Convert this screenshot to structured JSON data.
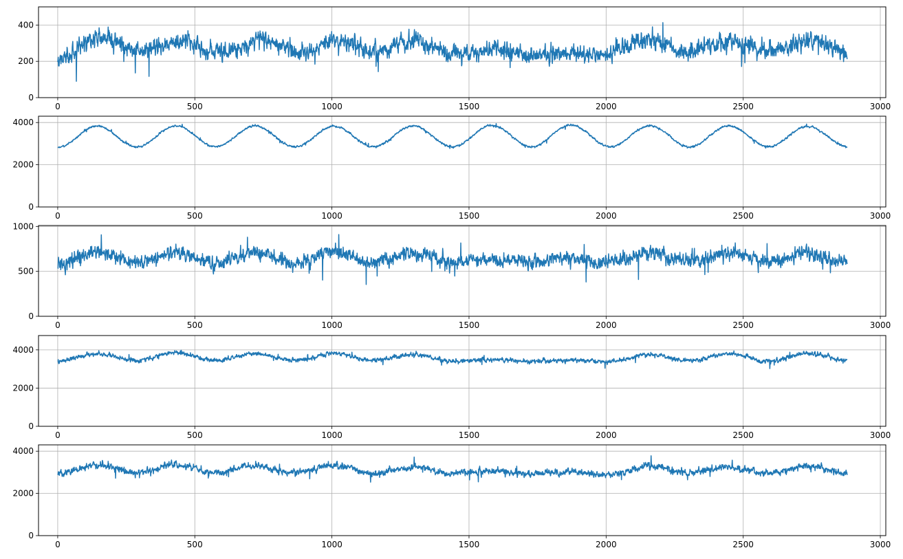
{
  "chart_data": [
    {
      "type": "line",
      "title": "",
      "xlabel": "",
      "ylabel": "",
      "xlim": [
        -70,
        3020
      ],
      "ylim": [
        0,
        500
      ],
      "xticks": [
        0,
        500,
        1000,
        1500,
        2000,
        2500,
        3000
      ],
      "xtick_labels": [
        "0",
        "500",
        "1000",
        "1500",
        "2000",
        "2500",
        "3000"
      ],
      "yticks": [
        0,
        200,
        400
      ],
      "ytick_labels": [
        "0",
        "200",
        "400"
      ],
      "grid": true,
      "color": "#1f77b4",
      "series": [
        {
          "n_points": 2880,
          "x_range": [
            0,
            2879
          ],
          "values_summary": {
            "baseline": 275,
            "min": 90,
            "max": 460
          },
          "envelope": [
            [
              0,
              210
            ],
            [
              150,
              330
            ],
            [
              300,
              255
            ],
            [
              450,
              310
            ],
            [
              600,
              245
            ],
            [
              750,
              320
            ],
            [
              900,
              245
            ],
            [
              1000,
              320
            ],
            [
              1150,
              255
            ],
            [
              1300,
              315
            ],
            [
              1450,
              240
            ],
            [
              1600,
              265
            ],
            [
              1750,
              240
            ],
            [
              1900,
              245
            ],
            [
              2000,
              240
            ],
            [
              2150,
              315
            ],
            [
              2300,
              255
            ],
            [
              2450,
              305
            ],
            [
              2600,
              255
            ],
            [
              2750,
              320
            ],
            [
              2879,
              255
            ]
          ],
          "noise_amplitude": 45
        }
      ]
    },
    {
      "type": "line",
      "title": "",
      "xlabel": "",
      "ylabel": "",
      "xlim": [
        -70,
        3020
      ],
      "ylim": [
        0,
        4300
      ],
      "xticks": [
        0,
        500,
        1000,
        1500,
        2000,
        2500,
        3000
      ],
      "xtick_labels": [
        "0",
        "500",
        "1000",
        "1500",
        "2000",
        "2500",
        "3000"
      ],
      "yticks": [
        0,
        2000,
        4000
      ],
      "ytick_labels": [
        "0",
        "2000",
        "4000"
      ],
      "grid": true,
      "color": "#1f77b4",
      "series": [
        {
          "n_points": 2880,
          "x_range": [
            0,
            2879
          ],
          "values_summary": {
            "baseline": 3350,
            "min": 2750,
            "max": 3950
          },
          "envelope": [
            [
              0,
              2830
            ],
            [
              144,
              3830
            ],
            [
              288,
              2850
            ],
            [
              432,
              3840
            ],
            [
              576,
              2850
            ],
            [
              720,
              3840
            ],
            [
              864,
              2850
            ],
            [
              1008,
              3820
            ],
            [
              1152,
              2850
            ],
            [
              1296,
              3840
            ],
            [
              1440,
              2850
            ],
            [
              1584,
              3860
            ],
            [
              1728,
              2850
            ],
            [
              1872,
              3880
            ],
            [
              2016,
              2850
            ],
            [
              2160,
              3850
            ],
            [
              2304,
              2850
            ],
            [
              2448,
              3850
            ],
            [
              2592,
              2860
            ],
            [
              2736,
              3820
            ],
            [
              2879,
              2860
            ]
          ],
          "noise_amplitude": 45
        }
      ]
    },
    {
      "type": "line",
      "title": "",
      "xlabel": "",
      "ylabel": "",
      "xlim": [
        -70,
        3020
      ],
      "ylim": [
        0,
        1010
      ],
      "xticks": [
        0,
        500,
        1000,
        1500,
        2000,
        2500,
        3000
      ],
      "xtick_labels": [
        "0",
        "500",
        "1000",
        "1500",
        "2000",
        "2500",
        "3000"
      ],
      "yticks": [
        0,
        500,
        1000
      ],
      "ytick_labels": [
        "0",
        "500",
        "1000"
      ],
      "grid": true,
      "color": "#1f77b4",
      "series": [
        {
          "n_points": 2880,
          "x_range": [
            0,
            2879
          ],
          "values_summary": {
            "baseline": 640,
            "min": 350,
            "max": 910
          },
          "envelope": [
            [
              0,
              580
            ],
            [
              144,
              710
            ],
            [
              288,
              590
            ],
            [
              432,
              700
            ],
            [
              576,
              590
            ],
            [
              720,
              710
            ],
            [
              864,
              590
            ],
            [
              1008,
              720
            ],
            [
              1152,
              600
            ],
            [
              1296,
              710
            ],
            [
              1440,
              600
            ],
            [
              1584,
              630
            ],
            [
              1728,
              610
            ],
            [
              1872,
              640
            ],
            [
              2016,
              600
            ],
            [
              2160,
              710
            ],
            [
              2304,
              610
            ],
            [
              2448,
              700
            ],
            [
              2592,
              600
            ],
            [
              2736,
              700
            ],
            [
              2879,
              590
            ]
          ],
          "noise_amplitude": 75
        }
      ]
    },
    {
      "type": "line",
      "title": "",
      "xlabel": "",
      "ylabel": "",
      "xlim": [
        -70,
        3020
      ],
      "ylim": [
        0,
        4750
      ],
      "xticks": [
        0,
        500,
        1000,
        1500,
        2000,
        2500,
        3000
      ],
      "xtick_labels": [
        "0",
        "500",
        "1000",
        "1500",
        "2000",
        "2500",
        "3000"
      ],
      "yticks": [
        0,
        2000,
        4000
      ],
      "ytick_labels": [
        "0",
        "2000",
        "4000"
      ],
      "grid": true,
      "color": "#1f77b4",
      "series": [
        {
          "n_points": 2880,
          "x_range": [
            0,
            2879
          ],
          "values_summary": {
            "baseline": 3600,
            "min": 2950,
            "max": 4300
          },
          "envelope": [
            [
              0,
              3400
            ],
            [
              144,
              3800
            ],
            [
              288,
              3450
            ],
            [
              432,
              3850
            ],
            [
              576,
              3450
            ],
            [
              720,
              3800
            ],
            [
              864,
              3450
            ],
            [
              1008,
              3800
            ],
            [
              1152,
              3450
            ],
            [
              1296,
              3750
            ],
            [
              1440,
              3400
            ],
            [
              1584,
              3500
            ],
            [
              1728,
              3400
            ],
            [
              1872,
              3450
            ],
            [
              2016,
              3400
            ],
            [
              2160,
              3750
            ],
            [
              2304,
              3450
            ],
            [
              2448,
              3800
            ],
            [
              2592,
              3400
            ],
            [
              2736,
              3800
            ],
            [
              2879,
              3450
            ]
          ],
          "noise_amplitude": 110
        }
      ]
    },
    {
      "type": "line",
      "title": "",
      "xlabel": "",
      "ylabel": "",
      "xlim": [
        -70,
        3020
      ],
      "ylim": [
        0,
        4300
      ],
      "xticks": [
        0,
        500,
        1000,
        1500,
        2000,
        2500,
        3000
      ],
      "xtick_labels": [
        "0",
        "500",
        "1000",
        "1500",
        "2000",
        "2500",
        "3000"
      ],
      "yticks": [
        0,
        2000,
        4000
      ],
      "ytick_labels": [
        "0",
        "2000",
        "4000"
      ],
      "grid": true,
      "color": "#1f77b4",
      "series": [
        {
          "n_points": 2880,
          "x_range": [
            0,
            2879
          ],
          "values_summary": {
            "baseline": 3150,
            "min": 2300,
            "max": 3950
          },
          "envelope": [
            [
              0,
              2950
            ],
            [
              144,
              3350
            ],
            [
              288,
              3000
            ],
            [
              432,
              3350
            ],
            [
              576,
              3000
            ],
            [
              720,
              3300
            ],
            [
              864,
              3000
            ],
            [
              1008,
              3350
            ],
            [
              1152,
              2950
            ],
            [
              1296,
              3250
            ],
            [
              1440,
              2950
            ],
            [
              1584,
              3050
            ],
            [
              1728,
              2950
            ],
            [
              1872,
              3000
            ],
            [
              2016,
              2900
            ],
            [
              2160,
              3300
            ],
            [
              2304,
              3000
            ],
            [
              2448,
              3250
            ],
            [
              2592,
              2950
            ],
            [
              2736,
              3300
            ],
            [
              2879,
              2950
            ]
          ],
          "noise_amplitude": 150
        }
      ]
    }
  ]
}
